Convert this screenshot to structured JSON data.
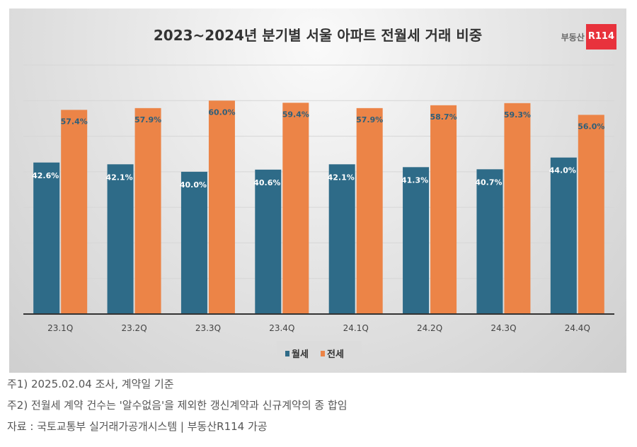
{
  "chart_data": {
    "type": "bar",
    "title": "2023~2024년 분기별 서울 아파트 전월세 거래 비중",
    "categories": [
      "23.1Q",
      "23.2Q",
      "23.3Q",
      "23.4Q",
      "24.1Q",
      "24.2Q",
      "24.3Q",
      "24.4Q"
    ],
    "series": [
      {
        "name": "월세",
        "color": "#2e6b88",
        "values": [
          42.6,
          42.1,
          40.0,
          40.6,
          42.1,
          41.3,
          40.7,
          44.0
        ]
      },
      {
        "name": "전세",
        "color": "#ec8447",
        "values": [
          57.4,
          57.9,
          60.0,
          59.4,
          57.9,
          58.7,
          59.3,
          56.0
        ]
      }
    ],
    "ylim": [
      0,
      70
    ],
    "grid": true,
    "legend": "bottom",
    "data_label_suffix": "%"
  },
  "logo": {
    "text": "부동산",
    "badge": "R114"
  },
  "notes": [
    "주1) 2025.02.04 조사, 계약일 기준",
    "주2) 전월세 계약 건수는 '알수없음'을 제외한 갱신계약과 신규계약의 종 합임",
    "자료 : 국토교통부 실거래가공개시스템 | 부동산R114 가공"
  ]
}
